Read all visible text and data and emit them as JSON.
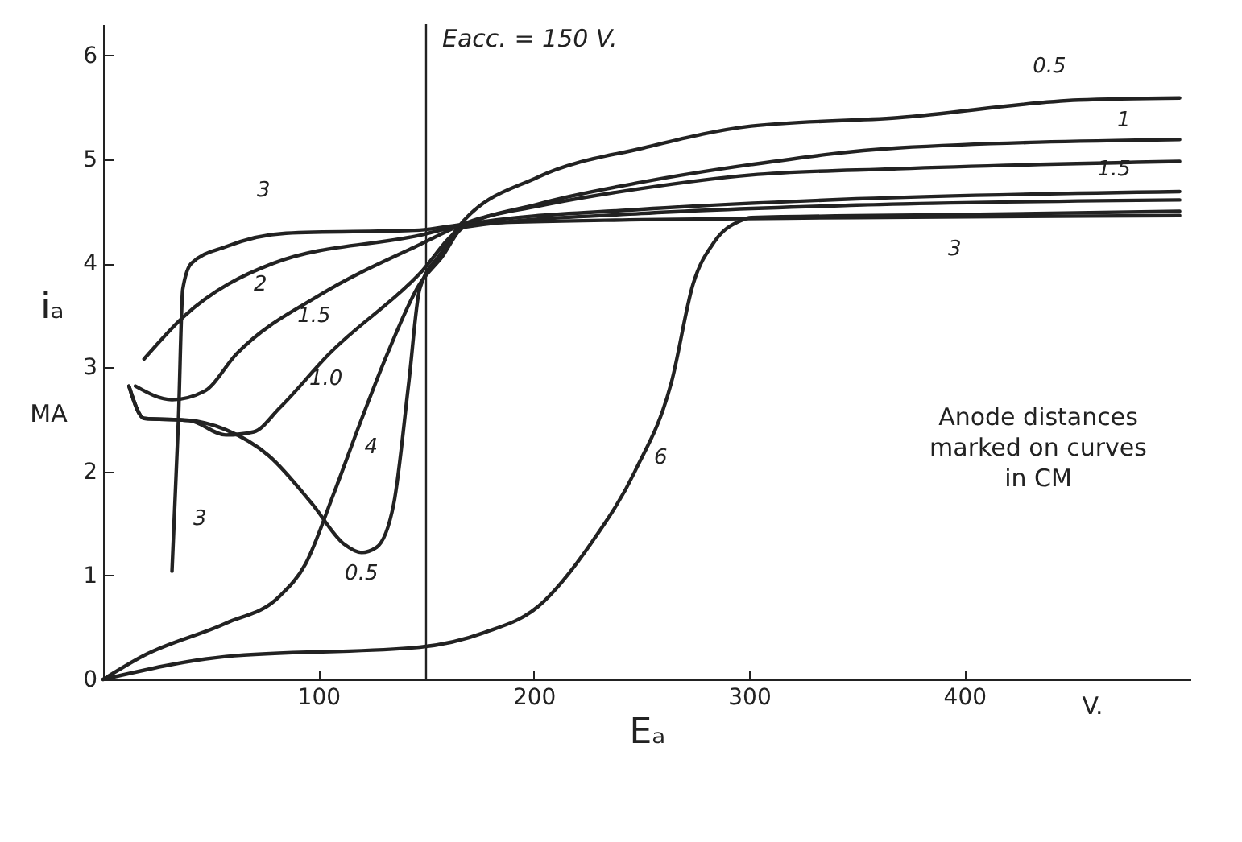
{
  "chart_data": {
    "type": "line",
    "xlabel": "Eₐ",
    "ylabel": "iₐ",
    "xlim": [
      0,
      505
    ],
    "ylim": [
      0,
      6.3
    ],
    "xticks": [
      100,
      200,
      300,
      400
    ],
    "yticks": [
      0,
      1,
      2,
      3,
      4,
      5,
      6
    ],
    "grid": false,
    "marker": "none",
    "line_style": "solid",
    "series": [
      {
        "color": "#222222",
        "x": [
          12,
          19,
          40,
          57,
          77,
          97,
          112,
          120,
          127,
          135,
          142,
          147,
          157,
          165,
          202,
          251,
          301,
          369,
          453,
          500
        ],
        "values": [
          2.82,
          2.51,
          2.49,
          2.4,
          2.15,
          1.69,
          1.3,
          1.22,
          1.27,
          1.69,
          2.86,
          3.75,
          4.1,
          4.35,
          4.83,
          5.11,
          5.32,
          5.4,
          5.57,
          5.59
        ]
      },
      {
        "color": "#222222",
        "x": [
          12,
          19,
          40,
          57,
          70,
          82,
          105,
          147,
          165,
          202,
          250,
          301,
          369,
          500
        ],
        "values": [
          2.82,
          2.51,
          2.49,
          2.35,
          2.38,
          2.61,
          3.13,
          3.9,
          4.32,
          4.57,
          4.78,
          4.95,
          5.11,
          5.19
        ]
      },
      {
        "color": "#222222",
        "x": [
          15,
          32,
          47,
          62,
          101,
          147,
          170,
          202,
          250,
          301,
          369,
          500
        ],
        "values": [
          2.82,
          2.69,
          2.77,
          3.13,
          3.7,
          4.18,
          4.4,
          4.55,
          4.72,
          4.85,
          4.91,
          4.98
        ]
      },
      {
        "color": "#222222",
        "x": [
          19,
          37,
          79,
          147,
          170,
          250,
          350,
          500
        ],
        "values": [
          3.08,
          3.48,
          4.0,
          4.27,
          4.38,
          4.52,
          4.62,
          4.69
        ]
      },
      {
        "color": "#222222",
        "x": [
          32,
          35,
          37,
          41,
          57,
          85,
          147,
          170,
          250,
          350,
          500
        ],
        "values": [
          1.04,
          2.5,
          3.75,
          4.0,
          4.16,
          4.29,
          4.32,
          4.38,
          4.42,
          4.44,
          4.46
        ]
      },
      {
        "color": "#222222",
        "x": [
          0,
          19,
          57,
          82,
          94,
          107,
          120,
          132,
          147,
          157,
          168,
          250,
          350,
          500
        ],
        "values": [
          0,
          0.23,
          0.54,
          0.8,
          1.11,
          1.78,
          2.5,
          3.13,
          3.8,
          4.05,
          4.35,
          4.48,
          4.56,
          4.61
        ]
      },
      {
        "color": "#222222",
        "x": [
          0,
          57,
          147,
          177,
          202,
          227,
          247,
          264,
          274,
          284,
          296,
          301,
          400,
          500
        ],
        "values": [
          0,
          0.22,
          0.31,
          0.45,
          0.7,
          1.32,
          2.0,
          2.86,
          3.8,
          4.21,
          4.41,
          4.44,
          4.47,
          4.5
        ]
      }
    ],
    "ref_lines": [
      {
        "axis": "x",
        "value": 150,
        "label": "Eacc. = 150 V.",
        "color": "#222222"
      }
    ],
    "annotations": [
      {
        "text": "3",
        "x": 85,
        "y": 4.29
      },
      {
        "text": "2",
        "x": 79,
        "y": 4.0
      },
      {
        "text": "1.5",
        "x": 101,
        "y": 3.7
      },
      {
        "text": "1.0",
        "x": 105,
        "y": 3.13
      },
      {
        "text": "4",
        "x": 120,
        "y": 2.5
      },
      {
        "text": "3",
        "x": 33,
        "y": 1.5
      },
      {
        "text": "0.5",
        "x": 120,
        "y": 1.22
      },
      {
        "text": "6",
        "x": 247,
        "y": 2.0
      },
      {
        "text": "0.5",
        "x": 453,
        "y": 5.57
      },
      {
        "text": "1",
        "x": 480,
        "y": 5.18
      },
      {
        "text": "1.5",
        "x": 480,
        "y": 4.97
      },
      {
        "text": "3",
        "x": 400,
        "y": 4.45
      },
      "Anode distances\nmarked on curves\nin CM",
      "MA",
      "V."
    ]
  }
}
